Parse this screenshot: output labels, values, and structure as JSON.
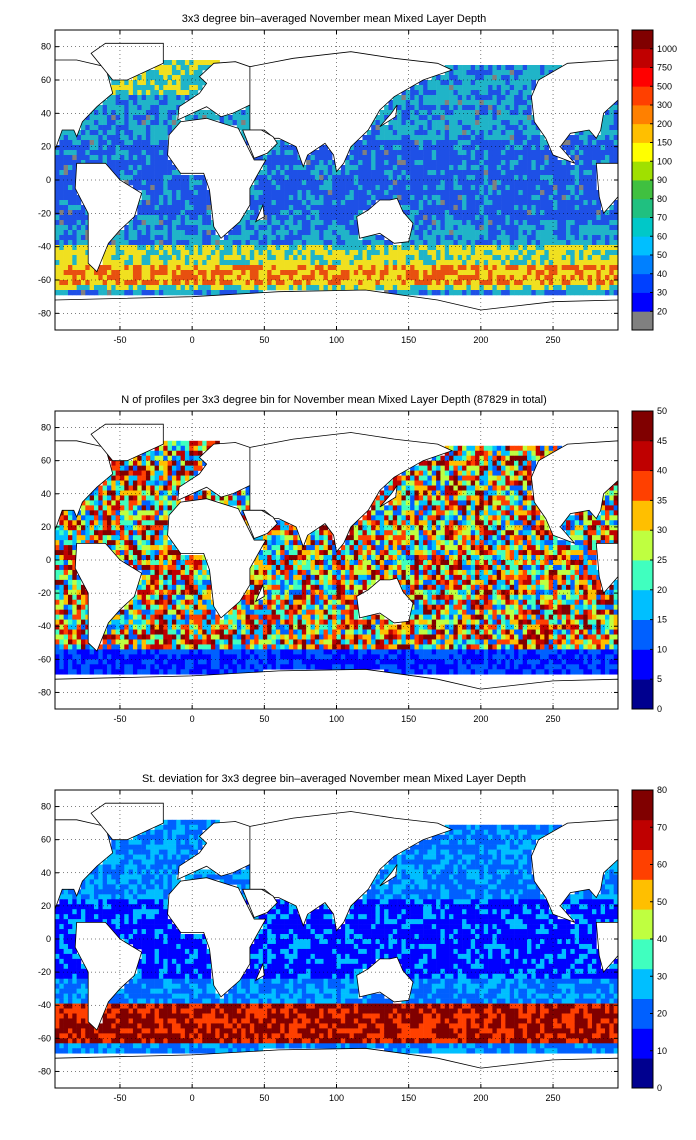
{
  "panels": [
    {
      "title": "3x3 degree bin–averaged November mean Mixed Layer Depth",
      "colorbar": {
        "ticks": [
          "20",
          "30",
          "40",
          "50",
          "60",
          "70",
          "80",
          "90",
          "100",
          "150",
          "200",
          "300",
          "500",
          "750",
          "1000"
        ],
        "colors": [
          "#808080",
          "#0000ff",
          "#0040ff",
          "#0080ff",
          "#00bfff",
          "#00c8c8",
          "#20c080",
          "#40c040",
          "#a0e000",
          "#ffff00",
          "#ffbf00",
          "#ff8000",
          "#ff4000",
          "#ff0000",
          "#c00000",
          "#800000"
        ]
      },
      "stats": {
        "shallow": "#1e50e6",
        "mid": "#20b4c8",
        "deep": "#f0e020",
        "deepest": "#e85010",
        "nodata": "#808080"
      }
    },
    {
      "title": "N of profiles per 3x3 degree bin for November mean Mixed Layer Depth  (87829 in total)",
      "colorbar": {
        "ticks": [
          "0",
          "5",
          "10",
          "15",
          "20",
          "25",
          "30",
          "35",
          "40",
          "45",
          "50"
        ],
        "colors": [
          "#00008f",
          "#0000ff",
          "#0060ff",
          "#00bfff",
          "#40ffbf",
          "#bfff40",
          "#ffbf00",
          "#ff4000",
          "#bf0000",
          "#800000"
        ]
      }
    },
    {
      "title": "St. deviation for 3x3 degree bin–averaged November mean Mixed Layer Depth",
      "colorbar": {
        "ticks": [
          "0",
          "10",
          "20",
          "30",
          "40",
          "50",
          "60",
          "70",
          "80"
        ],
        "colors": [
          "#00008f",
          "#0000ff",
          "#0060ff",
          "#00bfff",
          "#40ffbf",
          "#bfff40",
          "#ffbf00",
          "#ff4000",
          "#bf0000",
          "#800000"
        ]
      }
    }
  ],
  "axes": {
    "x_ticks": [
      "-50",
      "0",
      "50",
      "100",
      "150",
      "200",
      "250"
    ],
    "x_values": [
      -50,
      0,
      50,
      100,
      150,
      200,
      250
    ],
    "y_ticks": [
      "80",
      "60",
      "40",
      "20",
      "0",
      "-20",
      "-40",
      "-60",
      "-80"
    ],
    "y_values": [
      80,
      60,
      40,
      20,
      0,
      -20,
      -40,
      -60,
      -80
    ],
    "xlim": [
      -95,
      295
    ],
    "ylim": [
      -90,
      90
    ]
  }
}
